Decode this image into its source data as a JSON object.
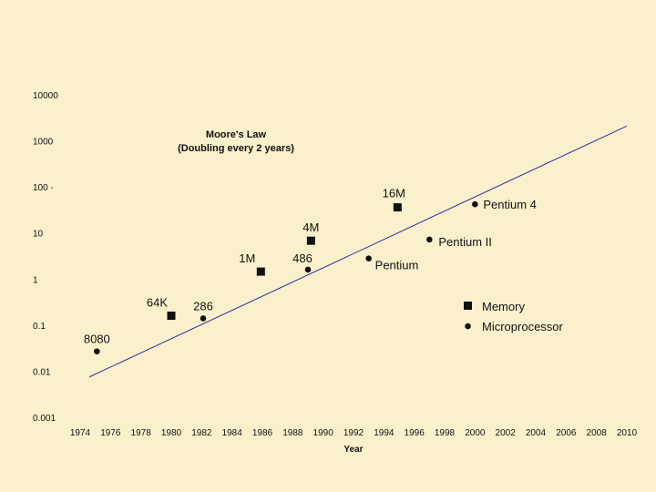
{
  "chart_data": {
    "type": "scatter",
    "title": "Moore's Law",
    "subtitle": "(Doubling every 2 years)",
    "xlabel": "Year",
    "ylabel": "",
    "y_scale": "log",
    "xlim": [
      1974,
      2010
    ],
    "ylim": [
      0.001,
      10000
    ],
    "x_ticks": [
      1974,
      1976,
      1978,
      1980,
      1982,
      1984,
      1986,
      1988,
      1990,
      1992,
      1994,
      1996,
      1998,
      2000,
      2002,
      2004,
      2006,
      2008,
      2010
    ],
    "y_ticks": [
      {
        "value": 10000,
        "label": "10000"
      },
      {
        "value": 1000,
        "label": "1000"
      },
      {
        "value": 100,
        "label": "100 -"
      },
      {
        "value": 10,
        "label": "10"
      },
      {
        "value": 1,
        "label": "1"
      },
      {
        "value": 0.1,
        "label": "0.1"
      },
      {
        "value": 0.01,
        "label": "0.01"
      },
      {
        "value": 0.001,
        "label": "0.001"
      }
    ],
    "grid": false,
    "trend_line": {
      "x": [
        1974.6,
        2010
      ],
      "y": [
        0.0075,
        2100
      ],
      "color": "#2b2fa0"
    },
    "series": [
      {
        "name": "Memory",
        "marker": "square",
        "color": "#111111",
        "points": [
          {
            "x": 1980,
            "y": 0.16,
            "label": "64K"
          },
          {
            "x": 1985.9,
            "y": 1.45,
            "label": "1M"
          },
          {
            "x": 1989.2,
            "y": 6.8,
            "label": "4M"
          },
          {
            "x": 1994.9,
            "y": 36,
            "label": "16M"
          }
        ]
      },
      {
        "name": "Microprocessor",
        "marker": "circle",
        "color": "#111111",
        "points": [
          {
            "x": 1975.1,
            "y": 0.027,
            "label": "8080"
          },
          {
            "x": 1982.1,
            "y": 0.14,
            "label": "286"
          },
          {
            "x": 1989,
            "y": 1.6,
            "label": "486"
          },
          {
            "x": 1993,
            "y": 2.8,
            "label": "Pentium"
          },
          {
            "x": 1997,
            "y": 7.2,
            "label": "Pentium II"
          },
          {
            "x": 2000,
            "y": 42,
            "label": "Pentium 4"
          }
        ]
      }
    ],
    "legend": {
      "placement": "right",
      "entries": [
        "Memory",
        "Microprocessor"
      ]
    }
  }
}
